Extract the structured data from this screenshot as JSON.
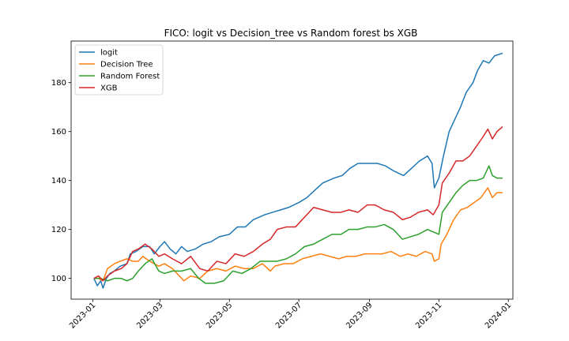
{
  "chart_data": {
    "type": "line",
    "title": "FICO: logit vs Decision_tree vs Random forest bs XGB",
    "xlabel": "",
    "ylabel": "",
    "x_ticks": [
      "2023-01",
      "2023-03",
      "2023-05",
      "2023-07",
      "2023-09",
      "2023-11",
      "2024-01"
    ],
    "y_ticks": [
      "100",
      "120",
      "140",
      "160",
      "180"
    ],
    "xlim": [
      "2022-12-13",
      "2024-01-05"
    ],
    "ylim": [
      91.5,
      197
    ],
    "legend_position": "upper-left",
    "series": [
      {
        "name": "logit",
        "color": "#1f77b4",
        "points": [
          [
            "2023-01-02",
            100
          ],
          [
            "2023-01-05",
            97
          ],
          [
            "2023-01-08",
            99
          ],
          [
            "2023-01-10",
            96
          ],
          [
            "2023-01-13",
            100
          ],
          [
            "2023-01-16",
            102
          ],
          [
            "2023-01-20",
            103
          ],
          [
            "2023-01-25",
            105
          ],
          [
            "2023-01-31",
            106
          ],
          [
            "2023-02-03",
            110
          ],
          [
            "2023-02-08",
            111
          ],
          [
            "2023-02-14",
            113
          ],
          [
            "2023-02-20",
            113
          ],
          [
            "2023-02-24",
            110
          ],
          [
            "2023-03-01",
            113
          ],
          [
            "2023-03-05",
            115
          ],
          [
            "2023-03-10",
            112
          ],
          [
            "2023-03-15",
            110
          ],
          [
            "2023-03-20",
            113
          ],
          [
            "2023-03-25",
            111
          ],
          [
            "2023-04-01",
            112
          ],
          [
            "2023-04-08",
            114
          ],
          [
            "2023-04-15",
            115
          ],
          [
            "2023-04-22",
            117
          ],
          [
            "2023-05-01",
            118
          ],
          [
            "2023-05-08",
            121
          ],
          [
            "2023-05-15",
            121
          ],
          [
            "2023-05-22",
            124
          ],
          [
            "2023-06-01",
            126
          ],
          [
            "2023-06-08",
            127
          ],
          [
            "2023-06-15",
            128
          ],
          [
            "2023-06-22",
            129
          ],
          [
            "2023-07-01",
            131
          ],
          [
            "2023-07-08",
            133
          ],
          [
            "2023-07-15",
            136
          ],
          [
            "2023-07-22",
            139
          ],
          [
            "2023-08-01",
            141
          ],
          [
            "2023-08-08",
            142
          ],
          [
            "2023-08-15",
            145
          ],
          [
            "2023-08-22",
            147
          ],
          [
            "2023-09-01",
            147
          ],
          [
            "2023-09-08",
            147
          ],
          [
            "2023-09-15",
            146
          ],
          [
            "2023-09-22",
            144
          ],
          [
            "2023-10-01",
            142
          ],
          [
            "2023-10-08",
            145
          ],
          [
            "2023-10-15",
            148
          ],
          [
            "2023-10-22",
            150
          ],
          [
            "2023-10-26",
            147
          ],
          [
            "2023-10-28",
            137
          ],
          [
            "2023-11-01",
            141
          ],
          [
            "2023-11-05",
            150
          ],
          [
            "2023-11-10",
            160
          ],
          [
            "2023-11-15",
            165
          ],
          [
            "2023-11-20",
            170
          ],
          [
            "2023-11-25",
            176
          ],
          [
            "2023-12-01",
            180
          ],
          [
            "2023-12-05",
            185
          ],
          [
            "2023-12-10",
            189
          ],
          [
            "2023-12-15",
            188
          ],
          [
            "2023-12-20",
            191
          ],
          [
            "2023-12-27",
            192
          ]
        ]
      },
      {
        "name": "Decision Tree",
        "color": "#ff7f0e",
        "points": [
          [
            "2023-01-02",
            100
          ],
          [
            "2023-01-06",
            100
          ],
          [
            "2023-01-10",
            99
          ],
          [
            "2023-01-14",
            104
          ],
          [
            "2023-01-20",
            106
          ],
          [
            "2023-01-25",
            107
          ],
          [
            "2023-01-31",
            108
          ],
          [
            "2023-02-05",
            107
          ],
          [
            "2023-02-10",
            107
          ],
          [
            "2023-02-14",
            109
          ],
          [
            "2023-02-20",
            107
          ],
          [
            "2023-02-28",
            105
          ],
          [
            "2023-03-05",
            106
          ],
          [
            "2023-03-12",
            104
          ],
          [
            "2023-03-18",
            101
          ],
          [
            "2023-03-22",
            99
          ],
          [
            "2023-03-28",
            101
          ],
          [
            "2023-04-05",
            100
          ],
          [
            "2023-04-12",
            103
          ],
          [
            "2023-04-20",
            104
          ],
          [
            "2023-04-28",
            103
          ],
          [
            "2023-05-06",
            105
          ],
          [
            "2023-05-14",
            104
          ],
          [
            "2023-05-22",
            104
          ],
          [
            "2023-05-30",
            106
          ],
          [
            "2023-06-06",
            103
          ],
          [
            "2023-06-10",
            105
          ],
          [
            "2023-06-18",
            106
          ],
          [
            "2023-06-26",
            106
          ],
          [
            "2023-07-04",
            108
          ],
          [
            "2023-07-12",
            109
          ],
          [
            "2023-07-20",
            110
          ],
          [
            "2023-07-28",
            109
          ],
          [
            "2023-08-05",
            108
          ],
          [
            "2023-08-12",
            109
          ],
          [
            "2023-08-20",
            109
          ],
          [
            "2023-08-28",
            110
          ],
          [
            "2023-09-05",
            110
          ],
          [
            "2023-09-12",
            110
          ],
          [
            "2023-09-20",
            111
          ],
          [
            "2023-09-28",
            109
          ],
          [
            "2023-10-05",
            110
          ],
          [
            "2023-10-12",
            109
          ],
          [
            "2023-10-20",
            111
          ],
          [
            "2023-10-26",
            110
          ],
          [
            "2023-10-28",
            107
          ],
          [
            "2023-11-01",
            108
          ],
          [
            "2023-11-03",
            114
          ],
          [
            "2023-11-08",
            118
          ],
          [
            "2023-11-14",
            124
          ],
          [
            "2023-11-20",
            128
          ],
          [
            "2023-11-26",
            129
          ],
          [
            "2023-12-02",
            131
          ],
          [
            "2023-12-08",
            133
          ],
          [
            "2023-12-14",
            137
          ],
          [
            "2023-12-18",
            133
          ],
          [
            "2023-12-22",
            135
          ],
          [
            "2023-12-27",
            135
          ]
        ]
      },
      {
        "name": "Random Forest",
        "color": "#2ca02c",
        "points": [
          [
            "2023-01-02",
            100
          ],
          [
            "2023-01-08",
            100
          ],
          [
            "2023-01-14",
            99
          ],
          [
            "2023-01-20",
            100
          ],
          [
            "2023-01-26",
            100
          ],
          [
            "2023-01-31",
            99
          ],
          [
            "2023-02-05",
            100
          ],
          [
            "2023-02-10",
            103
          ],
          [
            "2023-02-16",
            106
          ],
          [
            "2023-02-22",
            108
          ],
          [
            "2023-02-28",
            103
          ],
          [
            "2023-03-05",
            102
          ],
          [
            "2023-03-12",
            103
          ],
          [
            "2023-03-20",
            103
          ],
          [
            "2023-03-28",
            104
          ],
          [
            "2023-04-04",
            100
          ],
          [
            "2023-04-10",
            98
          ],
          [
            "2023-04-18",
            98
          ],
          [
            "2023-04-26",
            99
          ],
          [
            "2023-05-04",
            103
          ],
          [
            "2023-05-12",
            102
          ],
          [
            "2023-05-20",
            104
          ],
          [
            "2023-05-28",
            107
          ],
          [
            "2023-06-04",
            107
          ],
          [
            "2023-06-12",
            107
          ],
          [
            "2023-06-20",
            108
          ],
          [
            "2023-06-28",
            110
          ],
          [
            "2023-07-06",
            113
          ],
          [
            "2023-07-14",
            114
          ],
          [
            "2023-07-22",
            116
          ],
          [
            "2023-07-30",
            118
          ],
          [
            "2023-08-07",
            118
          ],
          [
            "2023-08-14",
            120
          ],
          [
            "2023-08-22",
            120
          ],
          [
            "2023-08-30",
            121
          ],
          [
            "2023-09-06",
            121
          ],
          [
            "2023-09-14",
            122
          ],
          [
            "2023-09-22",
            120
          ],
          [
            "2023-09-30",
            116
          ],
          [
            "2023-10-07",
            117
          ],
          [
            "2023-10-14",
            118
          ],
          [
            "2023-10-22",
            120
          ],
          [
            "2023-10-27",
            119
          ],
          [
            "2023-11-01",
            118
          ],
          [
            "2023-11-04",
            127
          ],
          [
            "2023-11-10",
            131
          ],
          [
            "2023-11-16",
            135
          ],
          [
            "2023-11-22",
            138
          ],
          [
            "2023-11-28",
            140
          ],
          [
            "2023-12-04",
            140
          ],
          [
            "2023-12-10",
            141
          ],
          [
            "2023-12-15",
            146
          ],
          [
            "2023-12-18",
            142
          ],
          [
            "2023-12-22",
            141
          ],
          [
            "2023-12-27",
            141
          ]
        ]
      },
      {
        "name": "XGB",
        "color": "#d62728",
        "points": [
          [
            "2023-01-02",
            100
          ],
          [
            "2023-01-06",
            101
          ],
          [
            "2023-01-10",
            99
          ],
          [
            "2023-01-14",
            101
          ],
          [
            "2023-01-20",
            103
          ],
          [
            "2023-01-26",
            104
          ],
          [
            "2023-01-31",
            106
          ],
          [
            "2023-02-05",
            111
          ],
          [
            "2023-02-10",
            112
          ],
          [
            "2023-02-16",
            114
          ],
          [
            "2023-02-22",
            112
          ],
          [
            "2023-02-28",
            109
          ],
          [
            "2023-03-05",
            110
          ],
          [
            "2023-03-12",
            108
          ],
          [
            "2023-03-20",
            106
          ],
          [
            "2023-03-28",
            109
          ],
          [
            "2023-04-05",
            104
          ],
          [
            "2023-04-12",
            103
          ],
          [
            "2023-04-20",
            107
          ],
          [
            "2023-04-28",
            106
          ],
          [
            "2023-05-06",
            110
          ],
          [
            "2023-05-14",
            109
          ],
          [
            "2023-05-22",
            111
          ],
          [
            "2023-05-30",
            114
          ],
          [
            "2023-06-06",
            116
          ],
          [
            "2023-06-12",
            120
          ],
          [
            "2023-06-20",
            121
          ],
          [
            "2023-06-28",
            121
          ],
          [
            "2023-07-06",
            125
          ],
          [
            "2023-07-14",
            129
          ],
          [
            "2023-07-22",
            128
          ],
          [
            "2023-07-30",
            127
          ],
          [
            "2023-08-07",
            127
          ],
          [
            "2023-08-14",
            128
          ],
          [
            "2023-08-22",
            127
          ],
          [
            "2023-08-30",
            130
          ],
          [
            "2023-09-06",
            130
          ],
          [
            "2023-09-14",
            128
          ],
          [
            "2023-09-22",
            127
          ],
          [
            "2023-09-30",
            124
          ],
          [
            "2023-10-07",
            125
          ],
          [
            "2023-10-14",
            127
          ],
          [
            "2023-10-22",
            128
          ],
          [
            "2023-10-27",
            126
          ],
          [
            "2023-11-01",
            130
          ],
          [
            "2023-11-04",
            139
          ],
          [
            "2023-11-10",
            143
          ],
          [
            "2023-11-16",
            148
          ],
          [
            "2023-11-22",
            148
          ],
          [
            "2023-11-28",
            150
          ],
          [
            "2023-12-04",
            154
          ],
          [
            "2023-12-10",
            158
          ],
          [
            "2023-12-14",
            161
          ],
          [
            "2023-12-18",
            157
          ],
          [
            "2023-12-22",
            160
          ],
          [
            "2023-12-27",
            162
          ]
        ]
      }
    ]
  }
}
